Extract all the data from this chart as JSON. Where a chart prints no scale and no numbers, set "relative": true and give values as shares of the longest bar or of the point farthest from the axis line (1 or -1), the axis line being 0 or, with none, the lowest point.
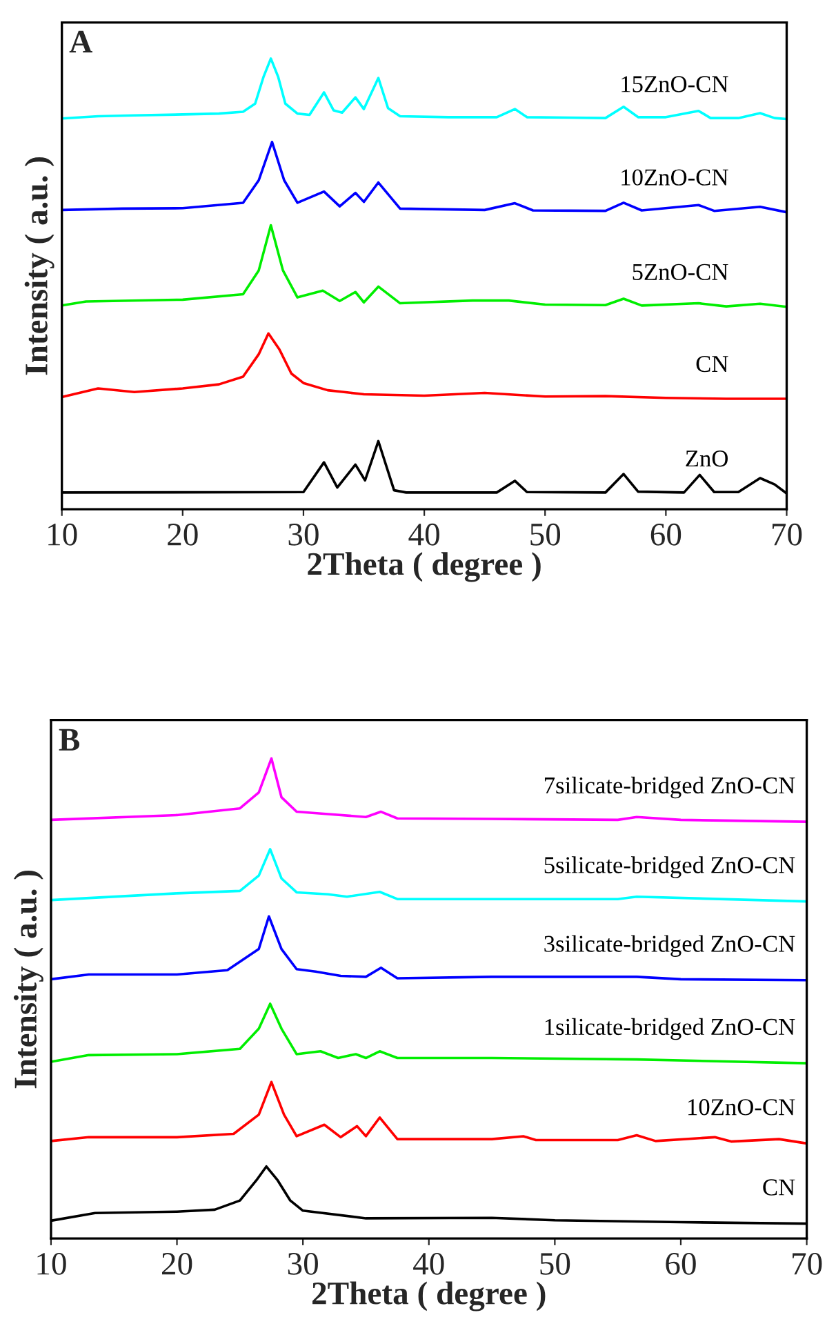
{
  "chart_data": [
    {
      "type": "line",
      "relative": true,
      "xlabel": "2Theta ( degree )",
      "ylabel": "Intensity ( a.u. )",
      "annotations": [
        "A"
      ],
      "xlim": [
        10,
        70
      ],
      "xticks": [
        10,
        20,
        30,
        40,
        50,
        60,
        70
      ],
      "tick_labels": "x",
      "legend": false,
      "grid": false,
      "series": [
        {
          "name": "ZnO",
          "color": "#000000",
          "x": [
            10,
            30,
            31.7,
            32.8,
            34.3,
            35.1,
            36.2,
            37.5,
            38.5,
            46,
            47.5,
            48.5,
            55,
            56.5,
            57.7,
            61.5,
            62.8,
            64,
            66,
            67.8,
            69,
            70
          ],
          "values": [
            0.037,
            0.038,
            0.104,
            0.048,
            0.099,
            0.064,
            0.151,
            0.042,
            0.037,
            0.037,
            0.063,
            0.038,
            0.037,
            0.078,
            0.039,
            0.037,
            0.076,
            0.038,
            0.038,
            0.069,
            0.055,
            0.035
          ]
        },
        {
          "name": "CN",
          "color": "#ff0000",
          "x": [
            10,
            13,
            16,
            20,
            23,
            25,
            26.3,
            27.1,
            28,
            29,
            30,
            32,
            35,
            40,
            45,
            50,
            55,
            60,
            65,
            70
          ],
          "values": [
            0.249,
            0.268,
            0.26,
            0.268,
            0.277,
            0.294,
            0.344,
            0.39,
            0.355,
            0.301,
            0.28,
            0.264,
            0.255,
            0.252,
            0.258,
            0.25,
            0.251,
            0.247,
            0.245,
            0.245
          ]
        },
        {
          "name": "5ZnO-CN",
          "color": "#00ee00",
          "x": [
            10,
            12,
            20,
            25,
            26.3,
            27.3,
            28.3,
            29.5,
            31.6,
            33,
            34.3,
            35,
            36.2,
            38,
            44,
            47,
            50,
            55,
            56.5,
            58,
            62.7,
            65,
            67.8,
            70
          ],
          "values": [
            0.452,
            0.461,
            0.465,
            0.477,
            0.53,
            0.63,
            0.53,
            0.47,
            0.485,
            0.462,
            0.482,
            0.459,
            0.494,
            0.457,
            0.463,
            0.463,
            0.454,
            0.453,
            0.467,
            0.452,
            0.457,
            0.45,
            0.456,
            0.449
          ]
        },
        {
          "name": "10ZnO-CN",
          "color": "#0000ff",
          "x": [
            10,
            15,
            20,
            25,
            26.3,
            27.4,
            28.4,
            29.5,
            31.7,
            33,
            34.3,
            35,
            36.2,
            38,
            45,
            47.5,
            49,
            55,
            56.5,
            58,
            62.7,
            64,
            67.8,
            70
          ],
          "values": [
            0.664,
            0.667,
            0.668,
            0.68,
            0.73,
            0.815,
            0.73,
            0.68,
            0.705,
            0.672,
            0.702,
            0.682,
            0.725,
            0.667,
            0.664,
            0.679,
            0.663,
            0.662,
            0.68,
            0.663,
            0.675,
            0.662,
            0.671,
            0.659
          ]
        },
        {
          "name": "15ZnO-CN",
          "color": "#00ffff",
          "x": [
            10,
            13,
            16,
            20,
            23,
            25,
            26,
            26.7,
            27.3,
            27.9,
            28.5,
            29.5,
            30.5,
            31.7,
            32.5,
            33.2,
            34.3,
            35,
            36.2,
            37,
            38,
            42,
            46,
            47.5,
            48.5,
            52,
            55,
            56.5,
            57.7,
            60,
            62.7,
            63.7,
            66,
            67.8,
            69,
            70
          ],
          "values": [
            0.867,
            0.872,
            0.874,
            0.876,
            0.878,
            0.882,
            0.9,
            0.96,
            1.0,
            0.96,
            0.9,
            0.878,
            0.875,
            0.925,
            0.885,
            0.88,
            0.914,
            0.888,
            0.957,
            0.89,
            0.872,
            0.87,
            0.87,
            0.888,
            0.87,
            0.869,
            0.868,
            0.893,
            0.87,
            0.87,
            0.884,
            0.868,
            0.868,
            0.879,
            0.868,
            0.866
          ]
        }
      ]
    },
    {
      "type": "line",
      "relative": true,
      "xlabel": "2Theta ( degree )",
      "ylabel": "Intensity ( a.u. )",
      "annotations": [
        "B"
      ],
      "xlim": [
        10,
        70
      ],
      "xticks": [
        10,
        20,
        30,
        40,
        50,
        60,
        70
      ],
      "tick_labels": "x",
      "legend": false,
      "grid": false,
      "series": [
        {
          "name": "CN",
          "color": "#000000",
          "x": [
            10,
            13.5,
            20,
            23,
            25,
            26.3,
            27.1,
            28,
            29,
            30,
            35,
            45,
            50,
            60,
            70
          ],
          "values": [
            0.037,
            0.053,
            0.056,
            0.06,
            0.079,
            0.121,
            0.15,
            0.121,
            0.079,
            0.058,
            0.042,
            0.043,
            0.038,
            0.034,
            0.031
          ]
        },
        {
          "name": "10ZnO-CN",
          "color": "#ff0000",
          "x": [
            10,
            13,
            20,
            24.5,
            26.5,
            27.5,
            28.5,
            29.5,
            31.7,
            33,
            34.3,
            35,
            36.1,
            37.5,
            45,
            47.5,
            48.5,
            55,
            56.5,
            58,
            62.7,
            64,
            67.8,
            70
          ],
          "values": [
            0.203,
            0.211,
            0.211,
            0.218,
            0.258,
            0.326,
            0.258,
            0.213,
            0.237,
            0.211,
            0.234,
            0.213,
            0.252,
            0.207,
            0.207,
            0.213,
            0.205,
            0.205,
            0.215,
            0.203,
            0.211,
            0.202,
            0.207,
            0.198
          ]
        },
        {
          "name": "1silicate-bridged ZnO-CN",
          "color": "#00ee00",
          "x": [
            10,
            13,
            20,
            25,
            26.5,
            27.4,
            28.3,
            29.5,
            31.4,
            32.8,
            34.2,
            35,
            36.1,
            37.5,
            45,
            56.5,
            70
          ],
          "values": [
            0.368,
            0.382,
            0.384,
            0.395,
            0.437,
            0.489,
            0.437,
            0.384,
            0.39,
            0.376,
            0.384,
            0.376,
            0.39,
            0.376,
            0.376,
            0.373,
            0.365
          ]
        },
        {
          "name": "3silicate-bridged ZnO-CN",
          "color": "#0000ff",
          "x": [
            10,
            13,
            20,
            24,
            26.5,
            27.3,
            28.3,
            29.5,
            31,
            33,
            35,
            36.2,
            37.5,
            45,
            56.5,
            60,
            70
          ],
          "values": [
            0.54,
            0.55,
            0.55,
            0.559,
            0.603,
            0.671,
            0.603,
            0.561,
            0.556,
            0.547,
            0.545,
            0.564,
            0.542,
            0.545,
            0.545,
            0.54,
            0.538
          ]
        },
        {
          "name": "5silicate-bridged ZnO-CN",
          "color": "#00ffff",
          "x": [
            10,
            20,
            25,
            26.5,
            27.4,
            28.3,
            29.5,
            32,
            33.5,
            36.1,
            37.5,
            45,
            55,
            56.5,
            70
          ],
          "values": [
            0.705,
            0.719,
            0.724,
            0.756,
            0.811,
            0.75,
            0.721,
            0.717,
            0.712,
            0.722,
            0.707,
            0.707,
            0.707,
            0.712,
            0.702
          ]
        },
        {
          "name": "7silicate-bridged ZnO-CN",
          "color": "#ff00ff",
          "x": [
            10,
            20,
            25,
            26.5,
            27.5,
            28.3,
            29.5,
            32,
            35,
            36.2,
            37.5,
            45,
            55,
            56.5,
            60,
            70
          ],
          "values": [
            0.872,
            0.882,
            0.896,
            0.929,
            1.0,
            0.919,
            0.889,
            0.884,
            0.878,
            0.889,
            0.875,
            0.874,
            0.872,
            0.878,
            0.872,
            0.868
          ]
        }
      ]
    }
  ]
}
